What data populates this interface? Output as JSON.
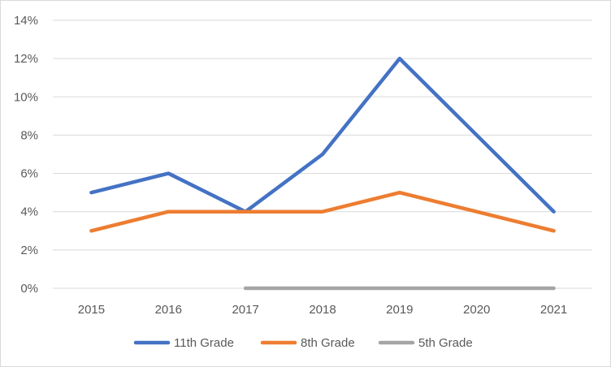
{
  "chart_data": {
    "type": "line",
    "title": "",
    "xlabel": "",
    "ylabel": "",
    "categories": [
      "2015",
      "2016",
      "2017",
      "2018",
      "2019",
      "2020",
      "2021"
    ],
    "y_ticks": [
      "0%",
      "2%",
      "4%",
      "6%",
      "8%",
      "10%",
      "12%",
      "14%"
    ],
    "ylim": [
      0,
      14
    ],
    "grid": true,
    "legend_position": "bottom",
    "series": [
      {
        "name": "11th Grade",
        "color": "#4472c4",
        "values": [
          5,
          6,
          4,
          7,
          12,
          8,
          4
        ]
      },
      {
        "name": "8th Grade",
        "color": "#ed7d31",
        "values": [
          3,
          4,
          4,
          4,
          5,
          4,
          3
        ]
      },
      {
        "name": "5th Grade",
        "color": "#a5a5a5",
        "values": [
          null,
          null,
          0,
          0,
          0,
          0,
          0
        ]
      }
    ]
  }
}
